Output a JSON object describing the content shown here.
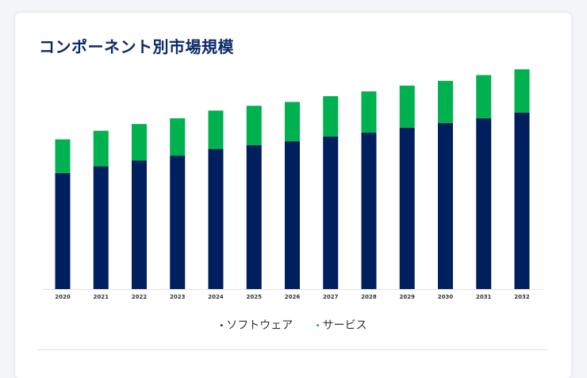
{
  "title": "コンポーネント別市場規模",
  "colors": {
    "software": "#001f5f",
    "services": "#00b14f",
    "title": "#0b2a66"
  },
  "chart_data": {
    "type": "bar",
    "stacked": true,
    "categories": [
      "2020",
      "2021",
      "2022",
      "2023",
      "2024",
      "2025",
      "2026",
      "2027",
      "2028",
      "2029",
      "2030",
      "2031",
      "2032"
    ],
    "series": [
      {
        "name": "ソフトウェア",
        "color": "#001f5f",
        "values": [
          121,
          128,
          134,
          139,
          146,
          150,
          154,
          159,
          163,
          168,
          173,
          178,
          184
        ]
      },
      {
        "name": "サービス",
        "color": "#00b14f",
        "values": [
          35,
          37,
          38,
          39,
          40,
          41,
          41,
          42,
          43,
          44,
          44,
          45,
          45
        ]
      }
    ],
    "ylim": [
      0,
      240
    ],
    "grid": false,
    "legend_position": "bottom-center"
  }
}
